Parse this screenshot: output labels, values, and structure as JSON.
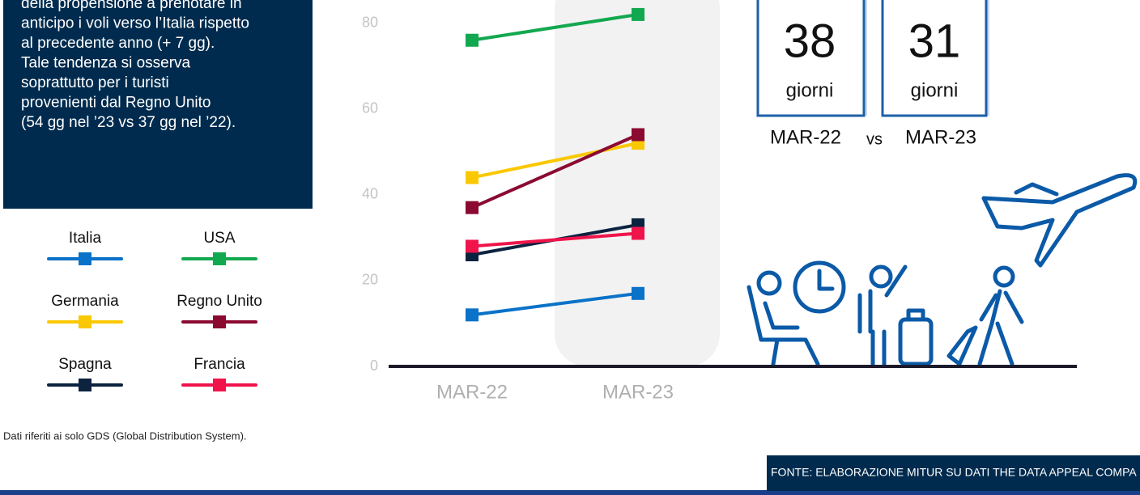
{
  "panel": {
    "lines": [
      "della propensione a prenotare in",
      "anticipo i voli verso l’Italia rispetto",
      "al precedente anno (+ 7 gg).",
      "Tale tendenza si osserva",
      "soprattutto per i turisti",
      "provenienti dal Regno Unito",
      "(54 gg nel ’23 vs 37 gg nel ’22)."
    ]
  },
  "chart_data": {
    "type": "line",
    "categories": [
      "MAR-22",
      "MAR-23"
    ],
    "series": [
      {
        "name": "Italia",
        "color": "#0a72c8",
        "values": [
          12,
          17
        ]
      },
      {
        "name": "USA",
        "color": "#12a84f",
        "values": [
          76,
          82
        ]
      },
      {
        "name": "Germania",
        "color": "#fac800",
        "values": [
          44,
          52
        ]
      },
      {
        "name": "Regno Unito",
        "color": "#8b0a32",
        "values": [
          37,
          54
        ]
      },
      {
        "name": "Spagna",
        "color": "#0c2340",
        "values": [
          26,
          33
        ]
      },
      {
        "name": "Francia",
        "color": "#f0144b",
        "values": [
          28,
          31
        ]
      }
    ],
    "ylim": [
      0,
      85
    ],
    "yticks": [
      0,
      20,
      40,
      60,
      80
    ]
  },
  "kpi": {
    "items": [
      {
        "value": 38,
        "unit": "giorni"
      },
      {
        "value": 31,
        "unit": "giorni"
      }
    ],
    "labels": [
      "MAR-22",
      "vs",
      "MAR-23"
    ]
  },
  "note": "Dati riferiti ai solo GDS (Global Distribution System).",
  "source": "FONTE: ELABORAZIONE MITUR SU DATI THE DATA APPEAL COMPA"
}
